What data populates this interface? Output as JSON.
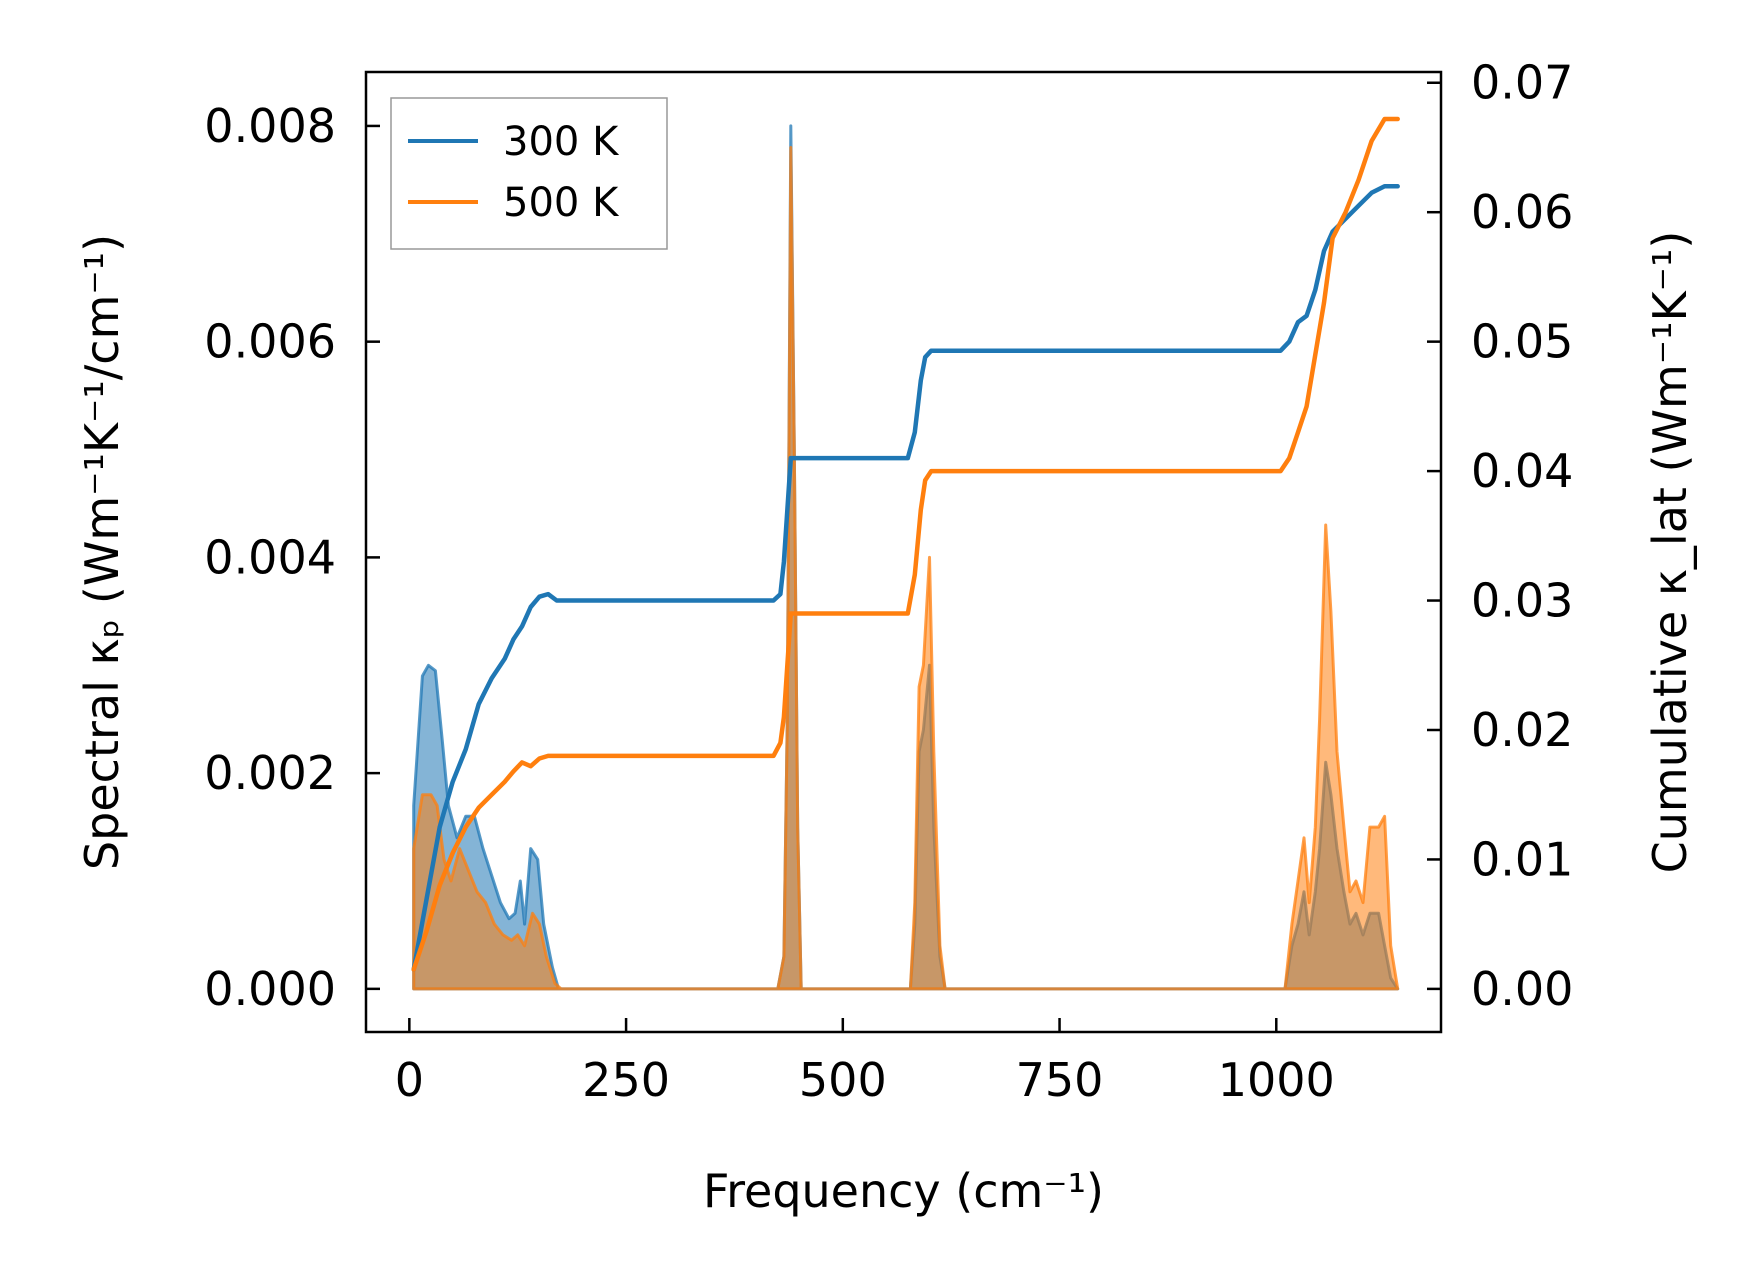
{
  "chart_data": {
    "type": "line",
    "xlabel": "Frequency (cm⁻¹)",
    "ylabel_left": "Spectral κₚ (Wm⁻¹K⁻¹/cm⁻¹)",
    "ylabel_right": "Cumulative κ_lat (Wm⁻¹K⁻¹)",
    "xlim": [
      -50,
      1190
    ],
    "ylim_left": [
      -0.0004,
      0.0085
    ],
    "ylim_right": [
      -0.00333,
      0.07083
    ],
    "x_ticks": [
      0,
      250,
      500,
      750,
      1000
    ],
    "y_ticks_left": [
      0.0,
      0.002,
      0.004,
      0.006,
      0.008
    ],
    "y_ticks_left_labels": [
      "0.000",
      "0.002",
      "0.004",
      "0.006",
      "0.008"
    ],
    "y_ticks_right": [
      0.0,
      0.01,
      0.02,
      0.03,
      0.04,
      0.05,
      0.06,
      0.07
    ],
    "y_ticks_right_labels": [
      "0.00",
      "0.01",
      "0.02",
      "0.03",
      "0.04",
      "0.05",
      "0.06",
      "0.07"
    ],
    "legend": {
      "position": "top-left",
      "entries": [
        "300 K",
        "500 K"
      ]
    },
    "grid": false,
    "series": [
      {
        "name": "300 K",
        "color": "#1f77b4",
        "spectral": [
          [
            5,
            0.0017
          ],
          [
            15,
            0.0029
          ],
          [
            22,
            0.003
          ],
          [
            30,
            0.00295
          ],
          [
            38,
            0.0023
          ],
          [
            45,
            0.0017
          ],
          [
            55,
            0.0014
          ],
          [
            65,
            0.0016
          ],
          [
            75,
            0.0016
          ],
          [
            85,
            0.0013
          ],
          [
            95,
            0.00105
          ],
          [
            105,
            0.0008
          ],
          [
            115,
            0.00065
          ],
          [
            122,
            0.0007
          ],
          [
            128,
            0.001
          ],
          [
            133,
            0.0006
          ],
          [
            140,
            0.0013
          ],
          [
            148,
            0.0012
          ],
          [
            155,
            0.0006
          ],
          [
            165,
            0.0002
          ],
          [
            172,
            0.0
          ],
          [
            425,
            0.0
          ],
          [
            432,
            0.0003
          ],
          [
            436,
            0.0025
          ],
          [
            440,
            0.008
          ],
          [
            444,
            0.005
          ],
          [
            448,
            0.0015
          ],
          [
            452,
            0.0
          ],
          [
            578,
            0.0
          ],
          [
            583,
            0.0006
          ],
          [
            588,
            0.0022
          ],
          [
            593,
            0.0024
          ],
          [
            600,
            0.003
          ],
          [
            605,
            0.0015
          ],
          [
            612,
            0.0003
          ],
          [
            618,
            0.0
          ],
          [
            1010,
            0.0
          ],
          [
            1018,
            0.0004
          ],
          [
            1025,
            0.0006
          ],
          [
            1032,
            0.0009
          ],
          [
            1038,
            0.0005
          ],
          [
            1045,
            0.0009
          ],
          [
            1050,
            0.0013
          ],
          [
            1057,
            0.0021
          ],
          [
            1063,
            0.0018
          ],
          [
            1070,
            0.0013
          ],
          [
            1078,
            0.0009
          ],
          [
            1085,
            0.0006
          ],
          [
            1092,
            0.0007
          ],
          [
            1100,
            0.0005
          ],
          [
            1108,
            0.0007
          ],
          [
            1118,
            0.0007
          ],
          [
            1125,
            0.0004
          ],
          [
            1132,
            0.0001
          ],
          [
            1140,
            0.0
          ]
        ],
        "cumulative": [
          [
            5,
            0.0015
          ],
          [
            20,
            0.007
          ],
          [
            35,
            0.0125
          ],
          [
            50,
            0.016
          ],
          [
            65,
            0.0185
          ],
          [
            80,
            0.022
          ],
          [
            95,
            0.024
          ],
          [
            110,
            0.0255
          ],
          [
            120,
            0.027
          ],
          [
            130,
            0.028
          ],
          [
            140,
            0.0295
          ],
          [
            150,
            0.0303
          ],
          [
            160,
            0.0305
          ],
          [
            170,
            0.03
          ],
          [
            250,
            0.03
          ],
          [
            420,
            0.03
          ],
          [
            428,
            0.0305
          ],
          [
            432,
            0.033
          ],
          [
            437,
            0.038
          ],
          [
            440,
            0.041
          ],
          [
            575,
            0.041
          ],
          [
            583,
            0.043
          ],
          [
            590,
            0.047
          ],
          [
            595,
            0.0488
          ],
          [
            602,
            0.0493
          ],
          [
            700,
            0.0493
          ],
          [
            1005,
            0.0493
          ],
          [
            1015,
            0.05
          ],
          [
            1025,
            0.0515
          ],
          [
            1035,
            0.052
          ],
          [
            1045,
            0.054
          ],
          [
            1055,
            0.057
          ],
          [
            1065,
            0.0585
          ],
          [
            1080,
            0.0595
          ],
          [
            1095,
            0.0605
          ],
          [
            1110,
            0.0615
          ],
          [
            1125,
            0.062
          ],
          [
            1140,
            0.062
          ]
        ]
      },
      {
        "name": "500 K",
        "color": "#ff7f0e",
        "spectral": [
          [
            5,
            0.0013
          ],
          [
            15,
            0.0018
          ],
          [
            25,
            0.0018
          ],
          [
            32,
            0.0017
          ],
          [
            40,
            0.0012
          ],
          [
            48,
            0.001
          ],
          [
            58,
            0.0013
          ],
          [
            68,
            0.0011
          ],
          [
            78,
            0.0009
          ],
          [
            88,
            0.0008
          ],
          [
            98,
            0.0006
          ],
          [
            108,
            0.0005
          ],
          [
            118,
            0.00045
          ],
          [
            125,
            0.0005
          ],
          [
            133,
            0.0004
          ],
          [
            142,
            0.0007
          ],
          [
            150,
            0.0006
          ],
          [
            158,
            0.0003
          ],
          [
            168,
            5e-05
          ],
          [
            175,
            0.0
          ],
          [
            425,
            0.0
          ],
          [
            432,
            0.0003
          ],
          [
            436,
            0.0025
          ],
          [
            440,
            0.0078
          ],
          [
            444,
            0.005
          ],
          [
            448,
            0.0015
          ],
          [
            452,
            0.0
          ],
          [
            578,
            0.0
          ],
          [
            583,
            0.0008
          ],
          [
            588,
            0.0028
          ],
          [
            593,
            0.003
          ],
          [
            600,
            0.004
          ],
          [
            605,
            0.0022
          ],
          [
            612,
            0.0004
          ],
          [
            618,
            0.0
          ],
          [
            1010,
            0.0
          ],
          [
            1018,
            0.0006
          ],
          [
            1025,
            0.001
          ],
          [
            1032,
            0.0014
          ],
          [
            1038,
            0.0008
          ],
          [
            1045,
            0.0015
          ],
          [
            1050,
            0.0025
          ],
          [
            1057,
            0.0043
          ],
          [
            1063,
            0.0035
          ],
          [
            1070,
            0.0022
          ],
          [
            1078,
            0.0015
          ],
          [
            1085,
            0.0009
          ],
          [
            1092,
            0.001
          ],
          [
            1100,
            0.0008
          ],
          [
            1108,
            0.0015
          ],
          [
            1118,
            0.0015
          ],
          [
            1125,
            0.0016
          ],
          [
            1132,
            0.0004
          ],
          [
            1140,
            0.0
          ]
        ],
        "cumulative": [
          [
            5,
            0.0015
          ],
          [
            20,
            0.0045
          ],
          [
            35,
            0.008
          ],
          [
            50,
            0.0105
          ],
          [
            65,
            0.0125
          ],
          [
            80,
            0.014
          ],
          [
            95,
            0.015
          ],
          [
            110,
            0.016
          ],
          [
            120,
            0.0168
          ],
          [
            130,
            0.0175
          ],
          [
            140,
            0.0172
          ],
          [
            150,
            0.0178
          ],
          [
            160,
            0.018
          ],
          [
            170,
            0.018
          ],
          [
            250,
            0.018
          ],
          [
            420,
            0.018
          ],
          [
            428,
            0.019
          ],
          [
            432,
            0.021
          ],
          [
            437,
            0.026
          ],
          [
            440,
            0.029
          ],
          [
            575,
            0.029
          ],
          [
            583,
            0.032
          ],
          [
            590,
            0.037
          ],
          [
            595,
            0.0393
          ],
          [
            602,
            0.04
          ],
          [
            700,
            0.04
          ],
          [
            1005,
            0.04
          ],
          [
            1015,
            0.041
          ],
          [
            1025,
            0.043
          ],
          [
            1035,
            0.045
          ],
          [
            1045,
            0.049
          ],
          [
            1055,
            0.053
          ],
          [
            1065,
            0.058
          ],
          [
            1080,
            0.06
          ],
          [
            1095,
            0.0625
          ],
          [
            1110,
            0.0655
          ],
          [
            1125,
            0.0672
          ],
          [
            1140,
            0.0672
          ]
        ]
      }
    ]
  }
}
